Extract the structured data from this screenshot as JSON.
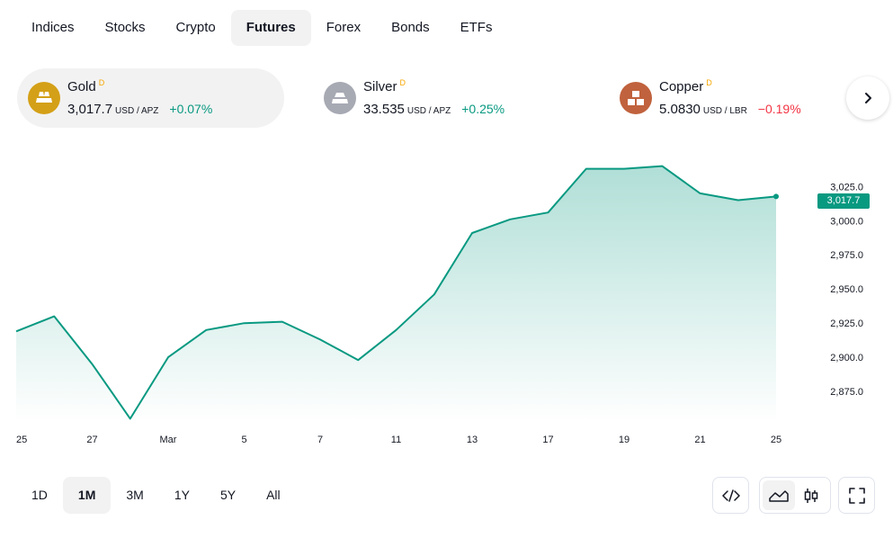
{
  "tabs": [
    "Indices",
    "Stocks",
    "Crypto",
    "Futures",
    "Forex",
    "Bonds",
    "ETFs"
  ],
  "active_tab": "Futures",
  "tickers": [
    {
      "name": "Gold",
      "badge": "D",
      "price": "3,017.7",
      "unit": "USD / APZ",
      "change": "+0.07%",
      "direction": "up",
      "logo_color": "#d4a017",
      "icon": "gold-bars-icon"
    },
    {
      "name": "Silver",
      "badge": "D",
      "price": "33.535",
      "unit": "USD / APZ",
      "change": "+0.25%",
      "direction": "up",
      "logo_color": "#a7a9b3",
      "icon": "silver-bars-icon"
    },
    {
      "name": "Copper",
      "badge": "D",
      "price": "5.0830",
      "unit": "USD / LBR",
      "change": "−0.19%",
      "direction": "down",
      "logo_color": "#c0623d",
      "icon": "copper-blocks-icon"
    }
  ],
  "chart": {
    "last_price_label": "3,017.7"
  },
  "chart_data": {
    "type": "area",
    "x_tick_labels": [
      "25",
      "27",
      "Mar",
      "5",
      "7",
      "11",
      "13",
      "17",
      "19",
      "21",
      "25"
    ],
    "y_tick_labels": [
      "3,025.0",
      "3,000.0",
      "2,975.0",
      "2,950.0",
      "2,925.0",
      "2,900.0",
      "2,875.0"
    ],
    "y_ticks": [
      3025,
      3000,
      2975,
      2950,
      2925,
      2900,
      2875
    ],
    "ylim": [
      2852,
      3043
    ],
    "values": [
      2919,
      2930,
      2895,
      2855,
      2900,
      2920,
      2925,
      2926,
      2913,
      2898,
      2920,
      2946,
      2991,
      3001,
      3006,
      3038,
      3038,
      3040,
      3020,
      3015,
      3017.7
    ],
    "line_color": "#089981",
    "grid": false
  },
  "ranges": [
    "1D",
    "1M",
    "3M",
    "1Y",
    "5Y",
    "All"
  ],
  "active_range": "1M",
  "tools": {
    "embed": "embed-code-icon",
    "area": "area-chart-icon",
    "candles": "candlestick-icon",
    "fullscreen": "fullscreen-icon"
  }
}
